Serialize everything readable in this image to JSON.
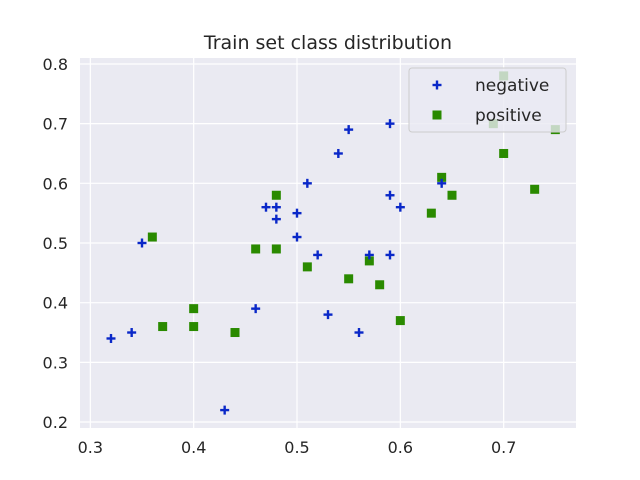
{
  "chart_data": {
    "type": "scatter",
    "title": "Train set class distribution",
    "xlabel": "",
    "ylabel": "",
    "xlim": [
      0.29,
      0.77
    ],
    "ylim": [
      0.19,
      0.81
    ],
    "xticks": [
      0.3,
      0.4,
      0.5,
      0.6,
      0.7
    ],
    "yticks": [
      0.2,
      0.3,
      0.4,
      0.5,
      0.6,
      0.7,
      0.8
    ],
    "grid": true,
    "legend_position": "top-right",
    "background": "#eaeaf2",
    "series": [
      {
        "name": "negative",
        "marker": "plus",
        "color": "#0a28c8",
        "points": [
          [
            0.32,
            0.34
          ],
          [
            0.34,
            0.35
          ],
          [
            0.35,
            0.5
          ],
          [
            0.43,
            0.22
          ],
          [
            0.46,
            0.39
          ],
          [
            0.47,
            0.56
          ],
          [
            0.48,
            0.56
          ],
          [
            0.48,
            0.54
          ],
          [
            0.5,
            0.55
          ],
          [
            0.5,
            0.51
          ],
          [
            0.51,
            0.6
          ],
          [
            0.52,
            0.48
          ],
          [
            0.53,
            0.38
          ],
          [
            0.54,
            0.65
          ],
          [
            0.55,
            0.69
          ],
          [
            0.56,
            0.35
          ],
          [
            0.57,
            0.48
          ],
          [
            0.59,
            0.7
          ],
          [
            0.59,
            0.58
          ],
          [
            0.59,
            0.48
          ],
          [
            0.6,
            0.56
          ],
          [
            0.64,
            0.6
          ]
        ]
      },
      {
        "name": "positive",
        "marker": "square",
        "color": "#2a8a00",
        "points": [
          [
            0.36,
            0.51
          ],
          [
            0.37,
            0.36
          ],
          [
            0.4,
            0.39
          ],
          [
            0.4,
            0.36
          ],
          [
            0.44,
            0.35
          ],
          [
            0.46,
            0.49
          ],
          [
            0.48,
            0.58
          ],
          [
            0.48,
            0.49
          ],
          [
            0.51,
            0.46
          ],
          [
            0.55,
            0.44
          ],
          [
            0.57,
            0.47
          ],
          [
            0.58,
            0.43
          ],
          [
            0.6,
            0.37
          ],
          [
            0.63,
            0.55
          ],
          [
            0.64,
            0.61
          ],
          [
            0.65,
            0.58
          ],
          [
            0.69,
            0.7
          ],
          [
            0.7,
            0.78
          ],
          [
            0.7,
            0.65
          ],
          [
            0.73,
            0.59
          ],
          [
            0.75,
            0.69
          ]
        ]
      }
    ]
  }
}
